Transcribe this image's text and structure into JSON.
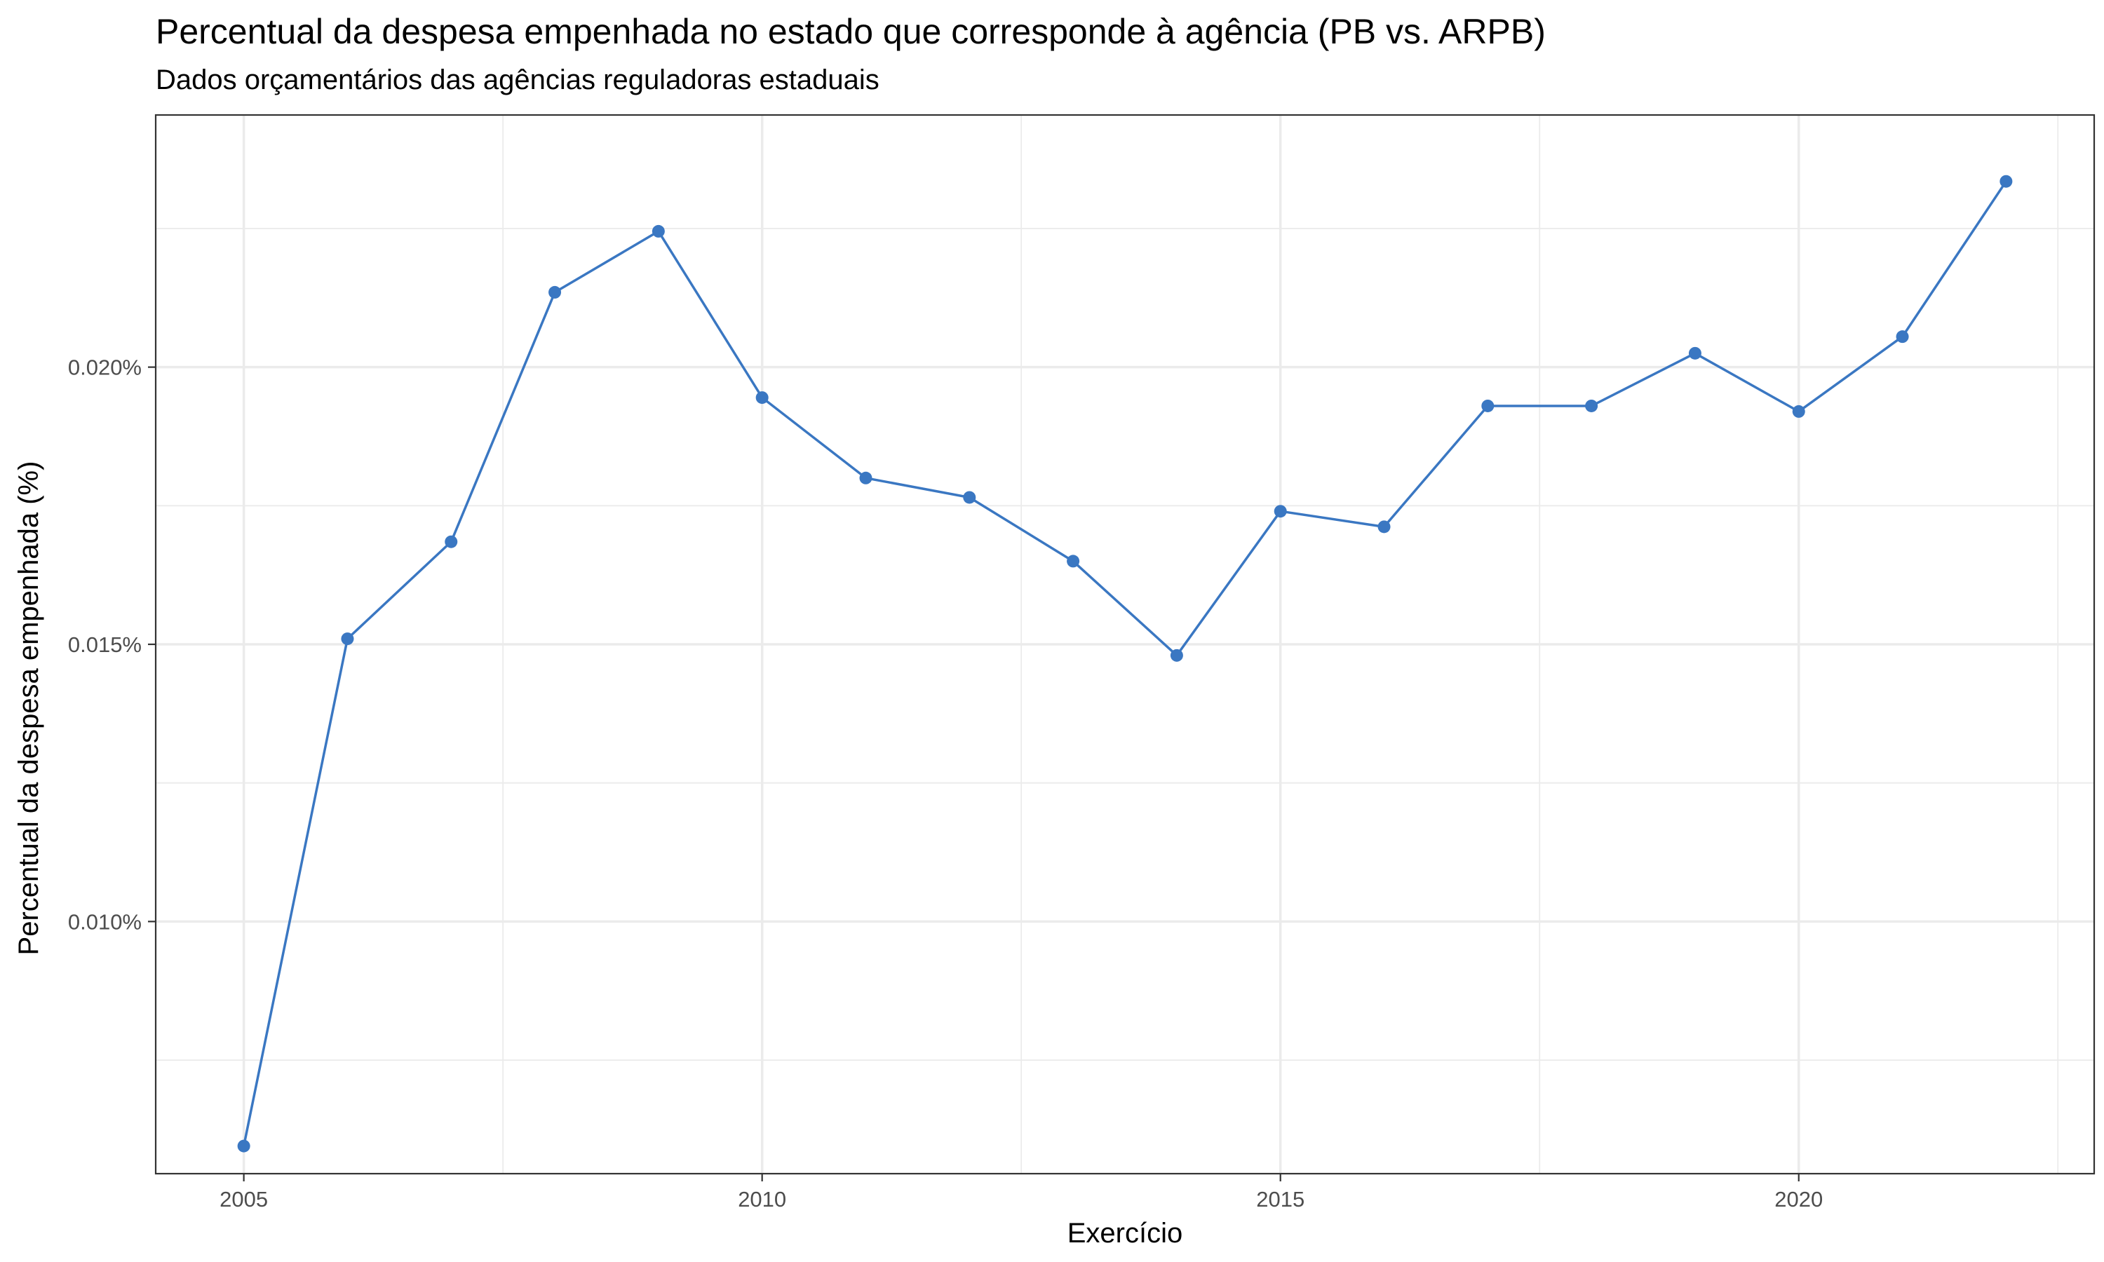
{
  "chart_data": {
    "type": "line",
    "title": "Percentual da despesa empenhada no estado que corresponde à agência (PB vs. ARPB)",
    "subtitle": "Dados orçamentários das agências reguladoras estaduais",
    "xlabel": "Exercício",
    "ylabel": "Percentual da despesa empenhada (%)",
    "x_ticks": [
      2005,
      2010,
      2015,
      2020
    ],
    "x_tick_labels": [
      "2005",
      "2010",
      "2015",
      "2020"
    ],
    "y_ticks": [
      0.01,
      0.015,
      0.02
    ],
    "y_tick_labels": [
      "0.010%",
      "0.015%",
      "0.020%"
    ],
    "xlim": [
      2004.15,
      2022.85
    ],
    "ylim": [
      0.005452,
      0.024548
    ],
    "grid": true,
    "line_color": "#3a77c2",
    "series": [
      {
        "x": [
          2005,
          2006,
          2007,
          2008,
          2009,
          2010,
          2011,
          2012,
          2013,
          2014,
          2015,
          2016,
          2017,
          2018,
          2019,
          2020,
          2021,
          2022
        ],
        "values": [
          0.00595,
          0.0151,
          0.01685,
          0.02135,
          0.02245,
          0.01945,
          0.018,
          0.01765,
          0.0165,
          0.0148,
          0.0174,
          0.01712,
          0.0193,
          0.0193,
          0.02025,
          0.0192,
          0.02055,
          0.02335
        ]
      }
    ]
  }
}
